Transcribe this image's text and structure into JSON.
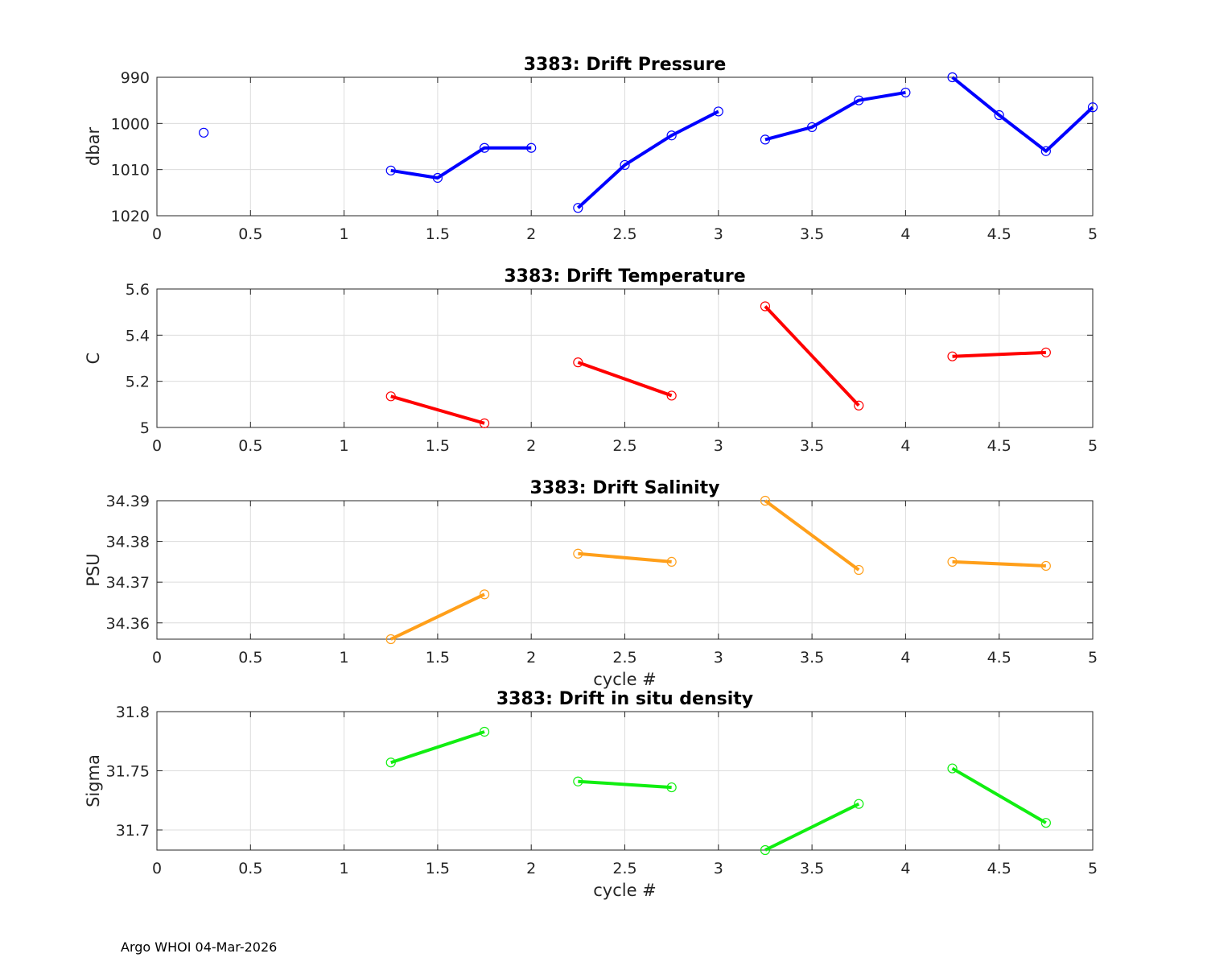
{
  "chart_data": [
    {
      "type": "line",
      "title": "3383: Drift Pressure",
      "xlabel": "",
      "ylabel": "dbar",
      "xlim": [
        0,
        5
      ],
      "ylim": [
        1020,
        990
      ],
      "y_reversed": true,
      "xticks": [
        "0",
        "0.5",
        "1",
        "1.5",
        "2",
        "2.5",
        "3",
        "3.5",
        "4",
        "4.5",
        "5"
      ],
      "yticks": [
        "990",
        "1000",
        "1010",
        "1020"
      ],
      "grid": true,
      "color": "#0000ff",
      "segments": [
        [
          [
            0.25,
            1002
          ]
        ],
        [
          [
            1.25,
            1010.2
          ],
          [
            1.5,
            1011.8
          ],
          [
            1.75,
            1005.3
          ],
          [
            2.0,
            1005.3
          ]
        ],
        [
          [
            2.25,
            1018.3
          ],
          [
            2.5,
            1009.0
          ],
          [
            2.75,
            1002.6
          ],
          [
            3.0,
            997.4
          ]
        ],
        [
          [
            3.25,
            1003.5
          ],
          [
            3.5,
            1000.8
          ],
          [
            3.75,
            995.0
          ],
          [
            4.0,
            993.3
          ]
        ],
        [
          [
            4.25,
            990.0
          ],
          [
            4.5,
            998.2
          ],
          [
            4.75,
            1006.0
          ],
          [
            5.0,
            996.5
          ]
        ]
      ]
    },
    {
      "type": "line",
      "title": "3383: Drift Temperature",
      "xlabel": "",
      "ylabel": "C",
      "xlim": [
        0,
        5
      ],
      "ylim": [
        5,
        5.6
      ],
      "xticks": [
        "0",
        "0.5",
        "1",
        "1.5",
        "2",
        "2.5",
        "3",
        "3.5",
        "4",
        "4.5",
        "5"
      ],
      "yticks": [
        "5",
        "5.2",
        "5.4",
        "5.6"
      ],
      "grid": true,
      "color": "#ff0000",
      "segments": [
        [
          [
            1.25,
            5.135
          ],
          [
            1.75,
            5.018
          ]
        ],
        [
          [
            2.25,
            5.282
          ],
          [
            2.75,
            5.138
          ]
        ],
        [
          [
            3.25,
            5.525
          ],
          [
            3.75,
            5.095
          ]
        ],
        [
          [
            4.25,
            5.308
          ],
          [
            4.75,
            5.325
          ]
        ]
      ]
    },
    {
      "type": "line",
      "title": "3383: Drift Salinity",
      "xlabel": "cycle #",
      "ylabel": "PSU",
      "xlim": [
        0,
        5
      ],
      "ylim": [
        34.356,
        34.39
      ],
      "xticks": [
        "0",
        "0.5",
        "1",
        "1.5",
        "2",
        "2.5",
        "3",
        "3.5",
        "4",
        "4.5",
        "5"
      ],
      "yticks": [
        "34.36",
        "34.37",
        "34.38",
        "34.39"
      ],
      "grid": true,
      "color": "#ff9f1a",
      "segments": [
        [
          [
            1.25,
            34.356
          ],
          [
            1.75,
            34.367
          ]
        ],
        [
          [
            2.25,
            34.377
          ],
          [
            2.75,
            34.375
          ]
        ],
        [
          [
            3.25,
            34.39
          ],
          [
            3.75,
            34.373
          ]
        ],
        [
          [
            4.25,
            34.375
          ],
          [
            4.75,
            34.374
          ]
        ]
      ]
    },
    {
      "type": "line",
      "title": "3383: Drift in situ density",
      "xlabel": "cycle #",
      "ylabel": "Sigma",
      "xlim": [
        0,
        5
      ],
      "ylim": [
        31.683,
        31.8
      ],
      "xticks": [
        "0",
        "0.5",
        "1",
        "1.5",
        "2",
        "2.5",
        "3",
        "3.5",
        "4",
        "4.5",
        "5"
      ],
      "yticks": [
        "31.7",
        "31.75",
        "31.8"
      ],
      "grid": true,
      "color": "#11ee11",
      "segments": [
        [
          [
            1.25,
            31.757
          ],
          [
            1.75,
            31.783
          ]
        ],
        [
          [
            2.25,
            31.741
          ],
          [
            2.75,
            31.736
          ]
        ],
        [
          [
            3.25,
            31.683
          ],
          [
            3.75,
            31.722
          ]
        ],
        [
          [
            4.25,
            31.752
          ],
          [
            4.75,
            31.706
          ]
        ]
      ]
    }
  ],
  "footer": "Argo WHOI 04-Mar-2026"
}
